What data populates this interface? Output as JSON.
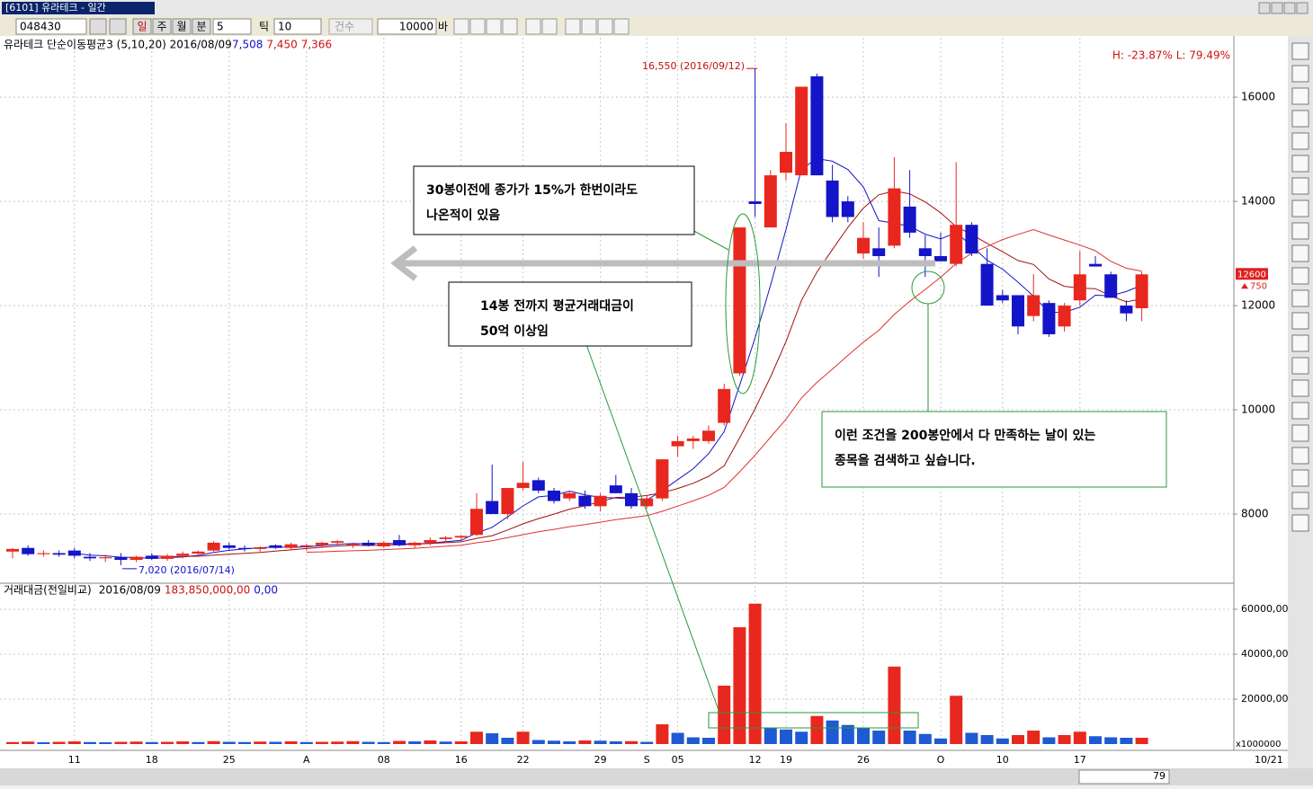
{
  "window": {
    "title": "[6101] 유라테크 - 일간"
  },
  "toolbar": {
    "code": "048430",
    "periods": [
      "일",
      "주",
      "월",
      "분"
    ],
    "minute": "5",
    "tick_label": "틱",
    "tick": "10",
    "count_label": "건수",
    "count": "10000",
    "bar_label": "바"
  },
  "chart_data": [
    {
      "type": "candlestick",
      "title": "유라테크 단순이동평균3 (5,10,20) 2016/08/09",
      "header_values": [
        {
          "text": "7,508",
          "color": "#1010d0"
        },
        {
          "text": "7,450",
          "color": "#d01010"
        },
        {
          "text": "7,366",
          "color": "#d01010"
        }
      ],
      "range_text": "H: -23.87%   L: 79.49%",
      "ylim": [
        6690,
        17140
      ],
      "yticks": [
        8000,
        10000,
        12000,
        14000,
        16000
      ],
      "grid": true,
      "up_color": "#e8281e",
      "down_color": "#1414c8",
      "categories": [
        null,
        null,
        null,
        null,
        "11",
        null,
        null,
        null,
        null,
        "18",
        null,
        null,
        null,
        null,
        "25",
        null,
        null,
        null,
        null,
        "A",
        null,
        null,
        null,
        null,
        "08",
        null,
        null,
        null,
        null,
        "16",
        null,
        null,
        null,
        "22",
        null,
        null,
        null,
        null,
        "29",
        null,
        null,
        "S",
        null,
        "05",
        null,
        null,
        null,
        null,
        "12",
        null,
        "19",
        null,
        null,
        null,
        null,
        "26",
        null,
        null,
        null,
        null,
        "O",
        null,
        null,
        null,
        "10",
        null,
        null,
        null,
        null,
        "17",
        null,
        null,
        null,
        null
      ],
      "candles": [
        [
          7280,
          7350,
          7150,
          7330
        ],
        [
          7350,
          7400,
          7200,
          7230
        ],
        [
          7230,
          7300,
          7180,
          7250
        ],
        [
          7250,
          7300,
          7180,
          7220
        ],
        [
          7300,
          7350,
          7150,
          7200
        ],
        [
          7180,
          7250,
          7100,
          7150
        ],
        [
          7150,
          7220,
          7080,
          7170
        ],
        [
          7170,
          7250,
          7020,
          7120
        ],
        [
          7120,
          7200,
          7080,
          7180
        ],
        [
          7200,
          7250,
          7120,
          7140
        ],
        [
          7140,
          7230,
          7100,
          7200
        ],
        [
          7200,
          7280,
          7150,
          7240
        ],
        [
          7240,
          7300,
          7200,
          7280
        ],
        [
          7300,
          7480,
          7280,
          7450
        ],
        [
          7400,
          7450,
          7320,
          7350
        ],
        [
          7350,
          7400,
          7280,
          7330
        ],
        [
          7330,
          7380,
          7280,
          7360
        ],
        [
          7400,
          7420,
          7330,
          7350
        ],
        [
          7350,
          7450,
          7320,
          7420
        ],
        [
          7380,
          7430,
          7300,
          7400
        ],
        [
          7400,
          7470,
          7350,
          7450
        ],
        [
          7450,
          7500,
          7400,
          7480
        ],
        [
          7400,
          7450,
          7350,
          7420
        ],
        [
          7450,
          7500,
          7380,
          7400
        ],
        [
          7380,
          7480,
          7350,
          7450
        ],
        [
          7500,
          7600,
          7380,
          7400
        ],
        [
          7400,
          7470,
          7350,
          7450
        ],
        [
          7450,
          7550,
          7400,
          7500
        ],
        [
          7520,
          7580,
          7450,
          7550
        ],
        [
          7550,
          7600,
          7500,
          7580
        ],
        [
          7600,
          8400,
          7580,
          8100
        ],
        [
          8250,
          8950,
          8000,
          8000
        ],
        [
          8000,
          8500,
          7900,
          8500
        ],
        [
          8500,
          9000,
          8450,
          8600
        ],
        [
          8650,
          8700,
          8400,
          8450
        ],
        [
          8450,
          8500,
          8200,
          8250
        ],
        [
          8300,
          8450,
          8250,
          8400
        ],
        [
          8350,
          8450,
          8100,
          8150
        ],
        [
          8150,
          8400,
          8050,
          8350
        ],
        [
          8550,
          8750,
          8400,
          8400
        ],
        [
          8400,
          8500,
          8100,
          8150
        ],
        [
          8150,
          8350,
          8100,
          8300
        ],
        [
          8300,
          9050,
          8250,
          9050
        ],
        [
          9300,
          9500,
          9100,
          9400
        ],
        [
          9400,
          9500,
          9250,
          9450
        ],
        [
          9400,
          9700,
          9350,
          9600
        ],
        [
          9750,
          10500,
          9700,
          10400
        ],
        [
          10700,
          13500,
          10650,
          13500
        ],
        [
          14000,
          16550,
          13700,
          13950
        ],
        [
          13500,
          14600,
          13500,
          14500
        ],
        [
          14550,
          15500,
          14400,
          14950
        ],
        [
          14500,
          16200,
          14500,
          16200
        ],
        [
          16400,
          16450,
          14500,
          14500
        ],
        [
          14400,
          14700,
          13600,
          13700
        ],
        [
          14000,
          14100,
          13600,
          13700
        ],
        [
          13000,
          13600,
          12900,
          13300
        ],
        [
          13100,
          13500,
          12550,
          12950
        ],
        [
          13150,
          14850,
          13100,
          14250
        ],
        [
          13900,
          14600,
          13300,
          13400
        ],
        [
          13100,
          13350,
          12550,
          12950
        ],
        [
          12950,
          13400,
          12850,
          12850
        ],
        [
          12800,
          14750,
          12750,
          13550
        ],
        [
          13550,
          13600,
          12950,
          13000
        ],
        [
          12800,
          13100,
          12000,
          12000
        ],
        [
          12200,
          12300,
          12050,
          12100
        ],
        [
          12200,
          12200,
          11450,
          11600
        ],
        [
          11800,
          12600,
          11700,
          12200
        ],
        [
          12050,
          12100,
          11400,
          11450
        ],
        [
          11600,
          12050,
          11500,
          12000
        ],
        [
          12100,
          13050,
          12000,
          12600
        ],
        [
          12800,
          12950,
          12750,
          12750
        ],
        [
          12600,
          12650,
          12150,
          12150
        ],
        [
          12000,
          12100,
          11700,
          11850
        ],
        [
          11950,
          12650,
          11700,
          12600
        ]
      ],
      "moving_averages": [
        {
          "period": 5,
          "color": "#1414c8"
        },
        {
          "period": 10,
          "color": "#a01010"
        },
        {
          "period": 20,
          "color": "#e03030"
        }
      ],
      "change": 750,
      "high_note": "16,550 (2016/09/12)",
      "low_note": "7,020 (2016/07/14)",
      "callouts": [
        {
          "lines": [
            "30봉이전에 종가가 15%가 한번이라도",
            "나온적이 있음"
          ]
        },
        {
          "lines": [
            "14봉 전까지 평균거래대금이",
            "50억 이상임"
          ]
        },
        {
          "lines": [
            "이런 조건을 200봉안에서 다 만족하는 날이 있는",
            "종목을 검색하고 싶습니다."
          ]
        }
      ]
    },
    {
      "type": "bar",
      "title": "거래대금(전일비교)",
      "date": "2016/08/09",
      "value_text": "183,850,000,00",
      "change_text": "0,00",
      "ylim": [
        0,
        71200
      ],
      "yticks": [
        {
          "value": 20000,
          "label": "20000,00"
        },
        {
          "value": 40000,
          "label": "40000,00"
        },
        {
          "value": 60000,
          "label": "60000,00"
        }
      ],
      "unit": "x1000000",
      "up_color": "#e8281e",
      "down_color": "#1e5ad2",
      "values": [
        900,
        1100,
        800,
        1000,
        1200,
        900,
        800,
        1000,
        1100,
        900,
        1000,
        1200,
        900,
        1300,
        1000,
        900,
        1100,
        1000,
        1200,
        900,
        1000,
        1100,
        1300,
        1000,
        900,
        1400,
        1200,
        1600,
        1100,
        1200,
        5500,
        4800,
        2800,
        5500,
        1800,
        1500,
        1200,
        1600,
        1500,
        1200,
        1300,
        1000,
        8800,
        5000,
        3000,
        2800,
        26000,
        52000,
        62500,
        7000,
        6500,
        5500,
        12500,
        10500,
        8500,
        7000,
        6000,
        34500,
        6000,
        4500,
        2500,
        21500,
        5000,
        4000,
        2500,
        4000,
        6000,
        3000,
        4000,
        5500,
        3500,
        3000,
        2800,
        2800
      ]
    }
  ],
  "scrollbar": {
    "position": "79",
    "end_date": "10/21"
  }
}
